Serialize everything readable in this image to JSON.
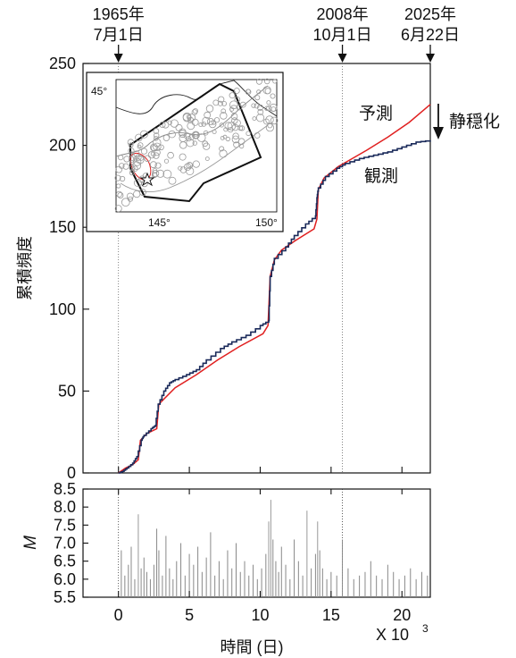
{
  "chart_data": [
    {
      "type": "line",
      "panel": "cumulative",
      "ylabel": "累積頻度",
      "ylim": [
        0,
        250
      ],
      "yticks": [
        0,
        50,
        100,
        150,
        200,
        250
      ],
      "xlim": [
        -2.5,
        22
      ],
      "xticks": [
        0,
        5,
        10,
        15,
        20
      ],
      "top_annotations": [
        {
          "x": 0,
          "lines": [
            "1965年",
            "7月1日"
          ]
        },
        {
          "x": 15.8,
          "lines": [
            "2008年",
            "10月1日"
          ]
        },
        {
          "x": 22,
          "lines": [
            "2025年",
            "6月22日"
          ]
        }
      ],
      "series": [
        {
          "name": "予測",
          "color": "#e02020",
          "x": [
            0,
            0.5,
            1.0,
            1.4,
            1.55,
            2.0,
            2.7,
            2.85,
            4.0,
            5.5,
            7.0,
            8.5,
            10.2,
            10.55,
            10.7,
            11.0,
            11.5,
            12.5,
            13.8,
            14.0,
            14.1,
            14.5,
            15.5,
            16.3,
            17.5,
            19.0,
            20.5,
            22.0
          ],
          "y": [
            0,
            3,
            5,
            8,
            20,
            24,
            27,
            42,
            52,
            60,
            69,
            77,
            85,
            90,
            120,
            130,
            136,
            142,
            149,
            155,
            173,
            180,
            187,
            191,
            197,
            205,
            214,
            225
          ]
        },
        {
          "name": "観測",
          "color": "#1a2a5a",
          "x": [
            0,
            0.3,
            0.6,
            1.0,
            1.3,
            1.6,
            1.8,
            2.3,
            2.6,
            2.8,
            3.2,
            3.6,
            4.0,
            4.8,
            5.5,
            6.2,
            7.2,
            8.0,
            9.0,
            10.0,
            10.6,
            10.7,
            11.0,
            11.8,
            12.4,
            13.2,
            13.9,
            14.0,
            14.1,
            14.6,
            15.4,
            16.0,
            17.0,
            18.0,
            19.0,
            20.0,
            21.0,
            22.0
          ],
          "y": [
            0,
            1,
            3,
            6,
            10,
            20,
            23,
            27,
            29,
            42,
            50,
            55,
            57,
            60,
            63,
            69,
            76,
            80,
            84,
            90,
            93,
            120,
            131,
            138,
            145,
            152,
            157,
            168,
            174,
            181,
            186,
            189,
            192,
            194,
            196,
            199,
            202,
            203
          ]
        }
      ],
      "annotation_text": "静穏化",
      "inset": {
        "lon_range": [
          141,
          151
        ],
        "lat_range": [
          40,
          46
        ],
        "tick_labels": [
          "45°",
          "145°",
          "150°"
        ]
      }
    },
    {
      "type": "bar",
      "panel": "magnitude",
      "ylabel": "M",
      "ylim": [
        5.5,
        8.5
      ],
      "yticks": [
        5.5,
        6.0,
        6.5,
        7.0,
        7.5,
        8.0,
        8.5
      ],
      "xlim": [
        -2.5,
        22
      ],
      "xticks": [
        0,
        5,
        10,
        15,
        20
      ],
      "xlabel": "時間 (日)",
      "x_multiplier_label": "X 10",
      "x_multiplier_exp": "3",
      "x": [
        0.2,
        0.45,
        0.7,
        0.9,
        1.15,
        1.4,
        1.6,
        1.8,
        2.0,
        2.25,
        2.5,
        2.7,
        2.85,
        3.1,
        3.35,
        3.6,
        3.85,
        4.1,
        4.4,
        4.7,
        5.0,
        5.3,
        5.6,
        5.9,
        6.2,
        6.5,
        6.8,
        7.1,
        7.4,
        7.7,
        8.0,
        8.3,
        8.6,
        8.9,
        9.2,
        9.5,
        9.8,
        10.1,
        10.4,
        10.6,
        10.75,
        10.9,
        11.1,
        11.3,
        11.5,
        11.8,
        12.1,
        12.4,
        12.7,
        13.0,
        13.3,
        13.6,
        13.9,
        14.05,
        14.2,
        14.4,
        14.7,
        15.0,
        15.4,
        15.8,
        16.2,
        16.6,
        17.0,
        17.4,
        17.8,
        18.2,
        18.6,
        19.0,
        19.4,
        19.8,
        20.2,
        20.6,
        21.0,
        21.4,
        21.8
      ],
      "values": [
        6.8,
        6.1,
        6.4,
        6.9,
        6.0,
        7.8,
        6.3,
        6.6,
        6.2,
        6.0,
        6.4,
        7.4,
        6.8,
        6.1,
        7.2,
        6.3,
        6.0,
        6.5,
        7.0,
        6.1,
        6.7,
        6.4,
        6.9,
        6.2,
        6.6,
        7.3,
        6.1,
        6.5,
        6.0,
        6.8,
        6.3,
        7.0,
        6.2,
        6.5,
        6.1,
        6.4,
        6.0,
        6.3,
        6.7,
        7.6,
        8.2,
        7.1,
        6.5,
        6.2,
        6.9,
        6.4,
        6.0,
        7.1,
        6.5,
        6.1,
        7.9,
        6.3,
        6.7,
        7.6,
        6.8,
        6.3,
        6.0,
        6.2,
        6.1,
        7.1,
        6.3,
        6.0,
        6.1,
        6.2,
        6.5,
        6.1,
        6.0,
        6.4,
        6.2,
        6.0,
        6.1,
        6.3,
        6.0,
        6.2,
        6.1
      ]
    }
  ]
}
